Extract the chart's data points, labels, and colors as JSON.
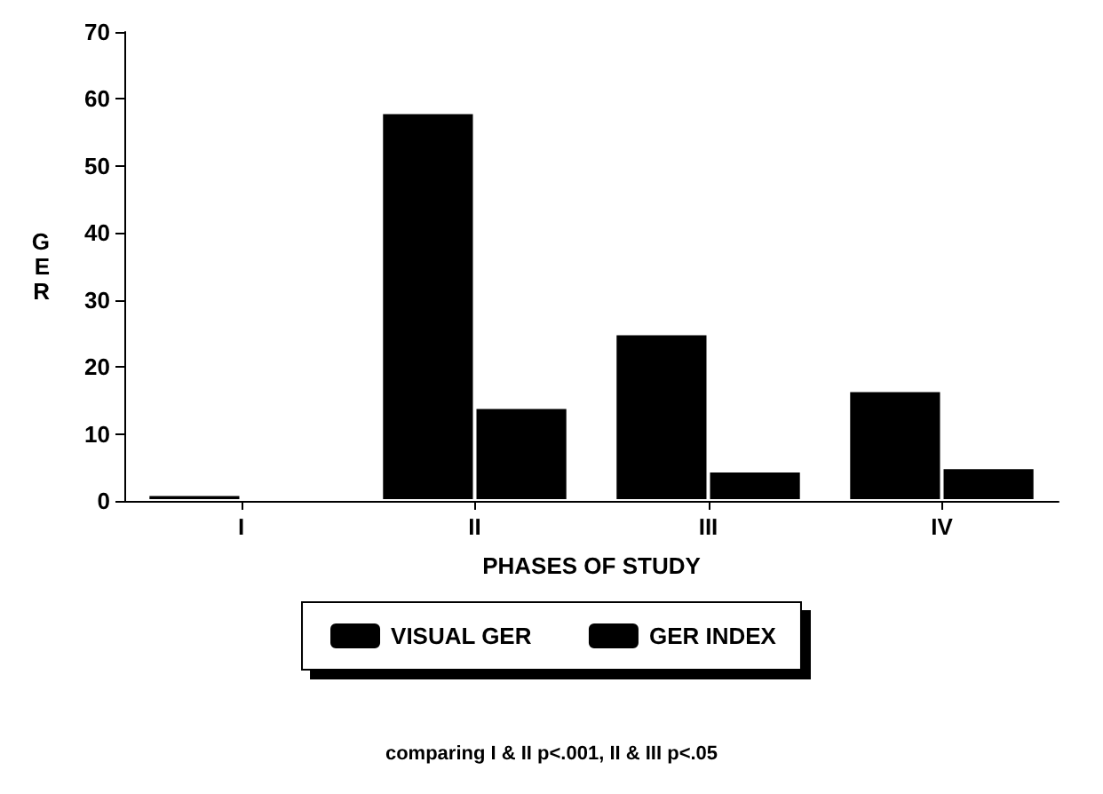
{
  "chart_data": {
    "type": "bar",
    "xlabel": "PHASES OF STUDY",
    "ylabel": "GER",
    "categories": [
      "I",
      "II",
      "III",
      "IV"
    ],
    "series": [
      {
        "name": "VISUAL GER",
        "color": "#000000",
        "values": [
          1,
          58,
          25,
          16.5
        ]
      },
      {
        "name": "GER INDEX",
        "color": "#000000",
        "values": [
          0.3,
          14,
          4.5,
          5
        ]
      }
    ],
    "ylim": [
      0,
      70
    ],
    "yticks": [
      0,
      10,
      20,
      30,
      40,
      50,
      60,
      70
    ],
    "grid": false,
    "legend": "bottom",
    "annotations": [
      "comparing I & II p<.001, II & III p<.05"
    ]
  }
}
